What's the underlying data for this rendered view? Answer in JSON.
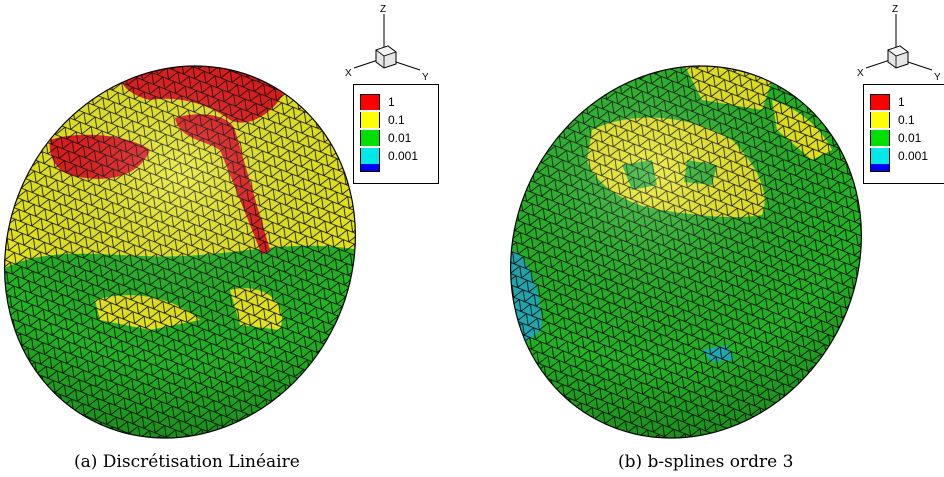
{
  "legend": {
    "entries": [
      {
        "label": "1",
        "color": "#ff0000"
      },
      {
        "label": "0.1",
        "color": "#ffff00"
      },
      {
        "label": "0.01",
        "color": "#00e000"
      },
      {
        "label": "0.001",
        "color": "#00e8e8"
      },
      {
        "label": "",
        "color": "#0000ff"
      }
    ]
  },
  "axes": {
    "x": "X",
    "y": "Y",
    "z": "Z"
  },
  "panels": [
    {
      "caption": "(a) Discrétisation Linéaire"
    },
    {
      "caption": "(b) b-splines ordre 3"
    }
  ],
  "colors": {
    "edge": "#000000",
    "red": "#ee1010",
    "yellow": "#eeee10",
    "green": "#18c018",
    "cyan": "#20b0b8"
  }
}
